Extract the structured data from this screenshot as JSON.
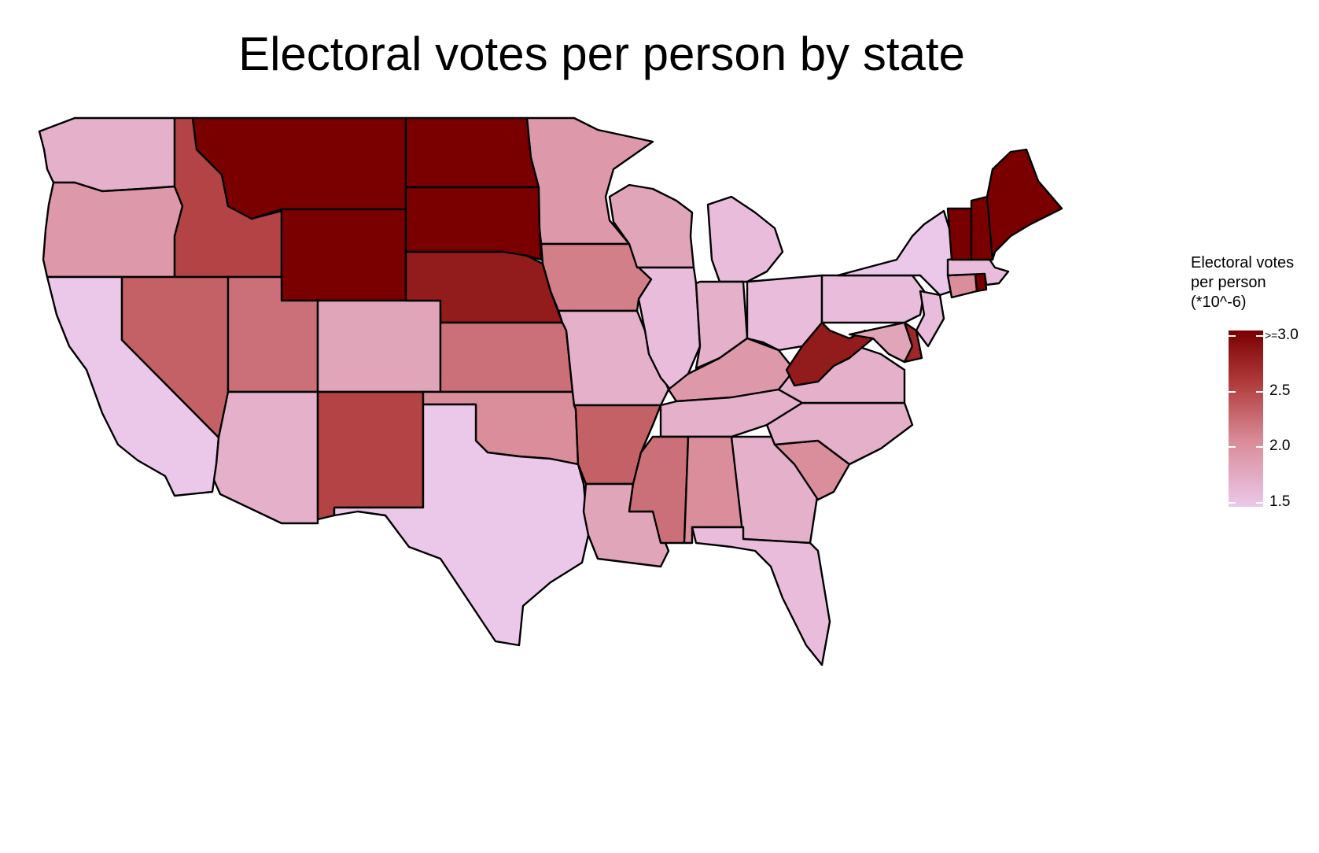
{
  "title": "Electoral votes per person by state",
  "legend": {
    "title_lines": [
      "Electoral votes",
      "per person",
      "(*10^-6)"
    ],
    "ticks": [
      {
        "prefix": ">=",
        "label": "3.0",
        "value": 3.0
      },
      {
        "prefix": "",
        "label": "2.5",
        "value": 2.5
      },
      {
        "prefix": "",
        "label": "2.0",
        "value": 2.0
      },
      {
        "prefix": "",
        "label": "1.5",
        "value": 1.5
      }
    ],
    "min": 1.5,
    "max": 3.0
  },
  "colors": {
    "low": "#ebc8ea",
    "high": "#7a0000",
    "outline": "#000000",
    "background": "#ffffff"
  },
  "states_estimated_values": {
    "Washington": 1.7,
    "Oregon": 1.9,
    "California": 1.5,
    "Idaho": 2.5,
    "Nevada": 2.3,
    "Montana": 3.0,
    "Wyoming": 3.0,
    "Utah": 2.2,
    "Arizona": 1.7,
    "Colorado": 1.8,
    "New Mexico": 2.5,
    "North Dakota": 3.0,
    "South Dakota": 3.0,
    "Nebraska": 2.8,
    "Kansas": 2.2,
    "Oklahoma": 2.0,
    "Texas": 1.5,
    "Minnesota": 1.9,
    "Iowa": 2.1,
    "Missouri": 1.7,
    "Arkansas": 2.3,
    "Louisiana": 1.8,
    "Wisconsin": 1.8,
    "Illinois": 1.6,
    "Michigan": 1.6,
    "Indiana": 1.7,
    "Ohio": 1.6,
    "Kentucky": 1.9,
    "Tennessee": 1.7,
    "Mississippi": 2.2,
    "Alabama": 2.0,
    "Georgia": 1.7,
    "Florida": 1.6,
    "South Carolina": 2.0,
    "North Carolina": 1.7,
    "Virginia": 1.7,
    "West Virginia": 2.8,
    "Pennsylvania": 1.6,
    "New York": 1.5,
    "Maryland": 1.8,
    "Delaware": 2.7,
    "New Jersey": 1.6,
    "Connecticut": 2.0,
    "Rhode Island": 3.0,
    "Massachusetts": 1.6,
    "Vermont": 3.0,
    "New Hampshire": 3.0,
    "Maine": 3.0
  }
}
